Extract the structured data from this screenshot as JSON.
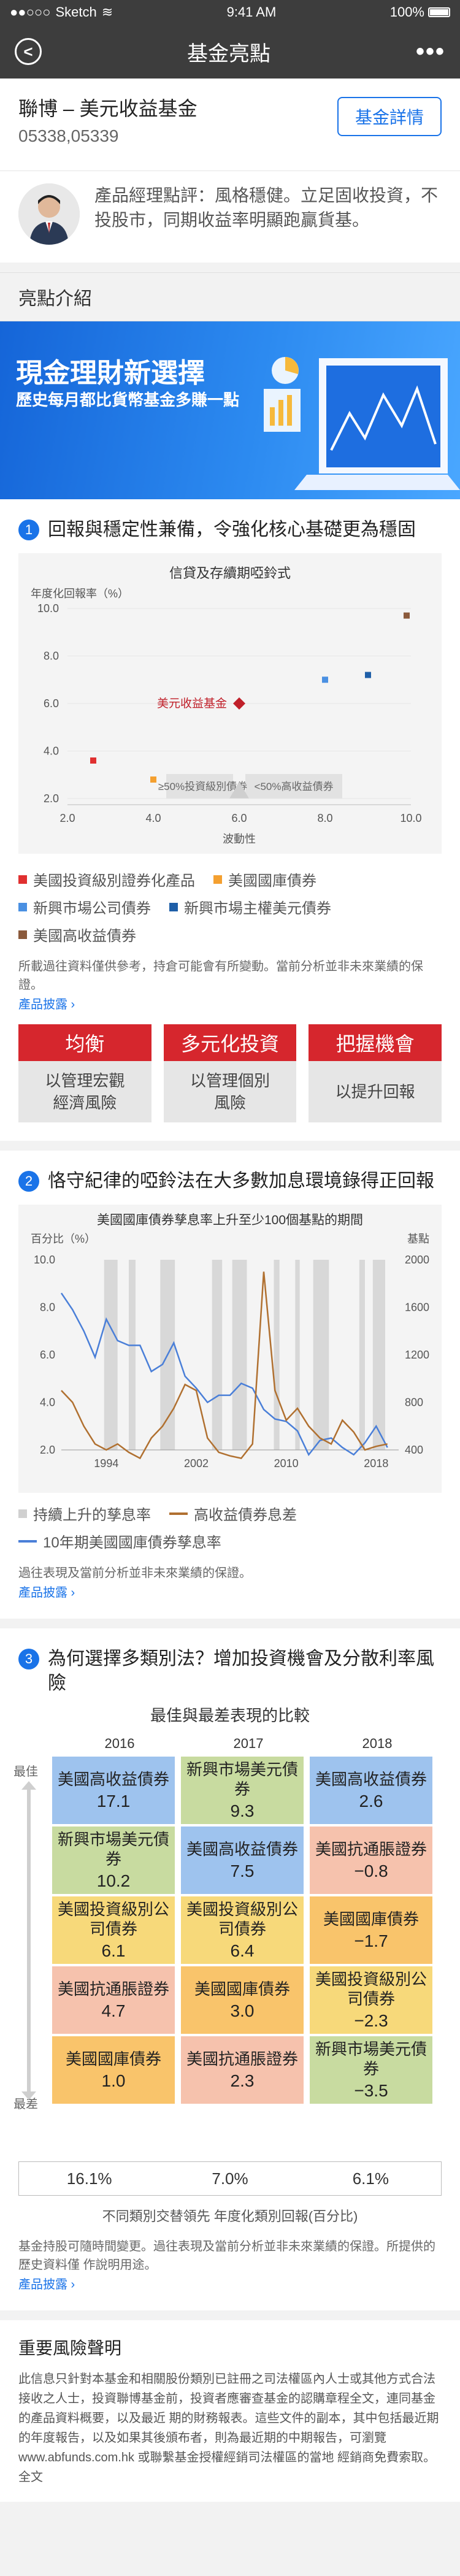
{
  "status": {
    "carrier": "Sketch",
    "time": "9:41 AM",
    "battery": "100%"
  },
  "nav": {
    "title": "基金亮點",
    "back": "<",
    "more": "•••"
  },
  "fund": {
    "name": "聯博 – 美元收益基金",
    "codes": "05338,05339",
    "detail_button": "基金詳情"
  },
  "manager": {
    "comment": "產品經理點評：風格穩健。立足固收投資，不投股市，同期收益率明顯跑贏貨基。"
  },
  "highlights": {
    "title": "亮點介紹"
  },
  "banner": {
    "title": "現金理財新選擇",
    "subtitle": "歷史每月都比貨幣基金多賺一點"
  },
  "section1": {
    "num": "1",
    "heading": "回報與穩定性兼備，令強化核心基礎更為穩固",
    "chart_title": "信貸及存續期啞鈴式",
    "ylabel": "年度化回報率（%）",
    "xlabel": "波動性",
    "highlight_label": "美元收益基金",
    "zone_left": "≥50%投資級別債券",
    "zone_right": "<50%高收益債券",
    "legend": [
      {
        "label": "美國投資級別證券化產品",
        "color": "#e03030"
      },
      {
        "label": "美國國庫債券",
        "color": "#f4a030"
      },
      {
        "label": "新興市場公司債券",
        "color": "#4a90e2"
      },
      {
        "label": "新興市場主權美元債券",
        "color": "#1f5fa8"
      },
      {
        "label": "美國高收益債券",
        "color": "#8b5a3c"
      }
    ],
    "footnote": "所載過往資料僅供參考，持倉可能會有所變動。當前分析並非未來業績的保證。",
    "link": "產品披露 ›",
    "cards": [
      {
        "title": "均衡",
        "desc": "以管理宏觀\n經濟風險"
      },
      {
        "title": "多元化投資",
        "desc": "以管理個別\n風險"
      },
      {
        "title": "把握機會",
        "desc": "以提升回報"
      }
    ]
  },
  "section2": {
    "num": "2",
    "heading": "恪守紀律的啞鈴法在大多數加息環境錄得正回報",
    "chart_title": "美國國庫債券孳息率上升至少100個基點的期間",
    "ylabel_left": "百分比（%）",
    "ylabel_right": "基點",
    "legend": [
      {
        "label": "持續上升的孳息率",
        "color": "#d0d0d0",
        "kind": "sq"
      },
      {
        "label": "高收益債券息差",
        "color": "#b07030",
        "kind": "line"
      },
      {
        "label": "10年期美國國庫債券孳息率",
        "color": "#4a7fd8",
        "kind": "line"
      }
    ],
    "footnote": "過往表現及當前分析並非未來業績的保證。",
    "link": "產品披露 ›"
  },
  "section3": {
    "num": "3",
    "heading": "為何選擇多類別法？增加投資機會及分散利率風險",
    "subtitle": "最佳與最差表現的比較",
    "years": [
      "2016",
      "2017",
      "2018"
    ],
    "best": "最佳",
    "worst": "最差",
    "columns": [
      [
        {
          "name": "美國高收益債券",
          "value": "17.1",
          "color": "#9ec3ee"
        },
        {
          "name": "新興市場美元債券",
          "value": "10.2",
          "color": "#c8dba0"
        },
        {
          "name": "美國投資級別公司債券",
          "value": "6.1",
          "color": "#f7d97a"
        },
        {
          "name": "美國抗通脹證券",
          "value": "4.7",
          "color": "#f6c2ad"
        },
        {
          "name": "美國國庫債券",
          "value": "1.0",
          "color": "#f9c46b"
        }
      ],
      [
        {
          "name": "新興市場美元債券",
          "value": "9.3",
          "color": "#c8dba0"
        },
        {
          "name": "美國高收益債券",
          "value": "7.5",
          "color": "#9ec3ee"
        },
        {
          "name": "美國投資級別公司債券",
          "value": "6.4",
          "color": "#f7d97a"
        },
        {
          "name": "美國國庫債券",
          "value": "3.0",
          "color": "#f9c46b"
        },
        {
          "name": "美國抗通脹證券",
          "value": "2.3",
          "color": "#f6c2ad"
        }
      ],
      [
        {
          "name": "美國高收益債券",
          "value": "2.6",
          "color": "#9ec3ee"
        },
        {
          "name": "美國抗通脹證券",
          "value": "−0.8",
          "color": "#f6c2ad"
        },
        {
          "name": "美國國庫債券",
          "value": "−1.7",
          "color": "#f9c46b"
        },
        {
          "name": "美國投資級別公司債券",
          "value": "−2.3",
          "color": "#f7d97a"
        },
        {
          "name": "新興市場美元債券",
          "value": "−3.5",
          "color": "#c8dba0"
        }
      ]
    ],
    "spread": [
      "16.1%",
      "7.0%",
      "6.1%"
    ],
    "spread_caption": "不同類別交替領先 年度化類別回報(百分比)",
    "footnote": "基金持股可隨時間變更。過往表現及當前分析並非未來業績的保證。所提供的歷史資料僅 作說明用途。",
    "link": "產品披露 ›"
  },
  "risk": {
    "title": "重要風險聲明",
    "text": "此信息只針對本基金和相關股份類別已註冊之司法權區內人士或其他方式合法接收之人士，投資聯博基金前，投資者應審查基金的認購章程全文，連同基金的產品資料概要，以及最近 期的財務報表。這些文件的副本，其中包括最近期的年度報告，以及如果其後頒布者，則為最近期的中期報告，可瀏覽www.abfunds.com.hk 或聯繫基金授權經銷司法權區的當地 經銷商免費索取。全文"
  },
  "chart_data": [
    {
      "type": "scatter",
      "title": "信貸及存續期啞鈴式",
      "xlabel": "波動性",
      "ylabel": "年度化回報率（%）",
      "xlim": [
        2.0,
        10.0
      ],
      "ylim": [
        2.0,
        10.0
      ],
      "xticks": [
        "2.0",
        "4.0",
        "6.0",
        "8.0",
        "10.0"
      ],
      "yticks": [
        "2.0",
        "4.0",
        "6.0",
        "8.0",
        "10.0"
      ],
      "series": [
        {
          "name": "美國投資級別證券化產品",
          "color": "#e03030",
          "points": [
            [
              2.6,
              3.6
            ]
          ]
        },
        {
          "name": "美國國庫債券",
          "color": "#f4a030",
          "points": [
            [
              4.0,
              2.8
            ]
          ]
        },
        {
          "name": "新興市場公司債券",
          "color": "#4a90e2",
          "points": [
            [
              8.0,
              7.0
            ]
          ]
        },
        {
          "name": "新興市場主權美元債券",
          "color": "#1f5fa8",
          "points": [
            [
              9.0,
              7.2
            ]
          ]
        },
        {
          "name": "美國高收益債券",
          "color": "#8b5a3c",
          "points": [
            [
              9.9,
              9.7
            ]
          ]
        },
        {
          "name": "美元收益基金",
          "color": "#c0202a",
          "points": [
            [
              6.0,
              6.0
            ]
          ]
        }
      ]
    },
    {
      "type": "line",
      "title": "美國國庫債券孳息率上升至少100個基點的期間",
      "xlim": [
        1990,
        2020
      ],
      "xticks": [
        "1994",
        "2002",
        "2010",
        "2018"
      ],
      "ylim_left": [
        2.0,
        10.0
      ],
      "yticks_left": [
        "2.0",
        "4.0",
        "6.0",
        "8.0",
        "10.0"
      ],
      "ylim_right": [
        400,
        2000
      ],
      "yticks_right": [
        "400",
        "800",
        "1200",
        "1600",
        "2000"
      ],
      "shaded_periods": [
        [
          1993.8,
          1995.0
        ],
        [
          1996.0,
          1996.6
        ],
        [
          1998.8,
          2000.1
        ],
        [
          2003.4,
          2004.3
        ],
        [
          2005.2,
          2006.5
        ],
        [
          2008.9,
          2009.4
        ],
        [
          2010.8,
          2011.2
        ],
        [
          2012.4,
          2013.8
        ],
        [
          2016.5,
          2017.0
        ],
        [
          2017.7,
          2018.8
        ]
      ],
      "series": [
        {
          "name": "10年期美國國庫債券孳息率",
          "axis": "left",
          "color": "#4a7fd8",
          "x": [
            1990,
            1991,
            1992,
            1993,
            1994,
            1995,
            1996,
            1997,
            1998,
            1999,
            2000,
            2001,
            2002,
            2003,
            2004,
            2005,
            2006,
            2007,
            2008,
            2009,
            2010,
            2011,
            2012,
            2013,
            2014,
            2015,
            2016,
            2017,
            2018,
            2019
          ],
          "y": [
            8.6,
            7.9,
            7.0,
            5.9,
            7.5,
            6.6,
            6.4,
            6.4,
            5.3,
            5.6,
            6.5,
            5.1,
            4.6,
            4.0,
            4.3,
            4.3,
            4.8,
            4.6,
            3.7,
            3.3,
            3.2,
            2.8,
            1.8,
            2.4,
            2.5,
            2.1,
            1.8,
            2.3,
            3.0,
            2.1
          ]
        },
        {
          "name": "高收益債券息差",
          "axis": "right",
          "color": "#b07030",
          "x": [
            1990,
            1991,
            1992,
            1993,
            1994,
            1995,
            1996,
            1997,
            1998,
            1999,
            2000,
            2001,
            2002,
            2003,
            2004,
            2005,
            2006,
            2007,
            2008,
            2009,
            2010,
            2011,
            2012,
            2013,
            2014,
            2015,
            2016,
            2017,
            2018,
            2019
          ],
          "y": [
            900,
            800,
            600,
            450,
            400,
            450,
            380,
            330,
            500,
            600,
            750,
            950,
            900,
            500,
            380,
            350,
            330,
            450,
            1900,
            900,
            650,
            750,
            600,
            500,
            450,
            650,
            550,
            400,
            430,
            450
          ]
        }
      ]
    }
  ]
}
